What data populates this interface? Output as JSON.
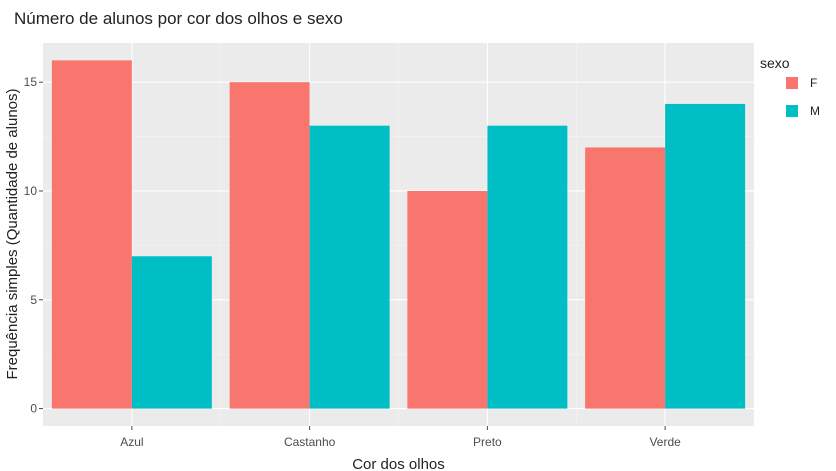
{
  "chart_data": {
    "type": "bar",
    "title": "Número de alunos por cor dos olhos e sexo",
    "xlabel": "Cor dos olhos",
    "ylabel": "Frequência simples (Quantidade de alunos)",
    "categories": [
      "Azul",
      "Castanho",
      "Preto",
      "Verde"
    ],
    "series": [
      {
        "name": "F",
        "values": [
          16,
          15,
          10,
          12
        ],
        "color": "#F8766D"
      },
      {
        "name": "M",
        "values": [
          7,
          13,
          13,
          14
        ],
        "color": "#00BFC4"
      }
    ],
    "ylim": [
      -0.8,
      16.8
    ],
    "yticks": [
      0,
      5,
      10,
      15
    ],
    "grid": true,
    "legend": {
      "title": "sexo",
      "position": "right"
    },
    "panel_background": "#EBEBEB"
  }
}
